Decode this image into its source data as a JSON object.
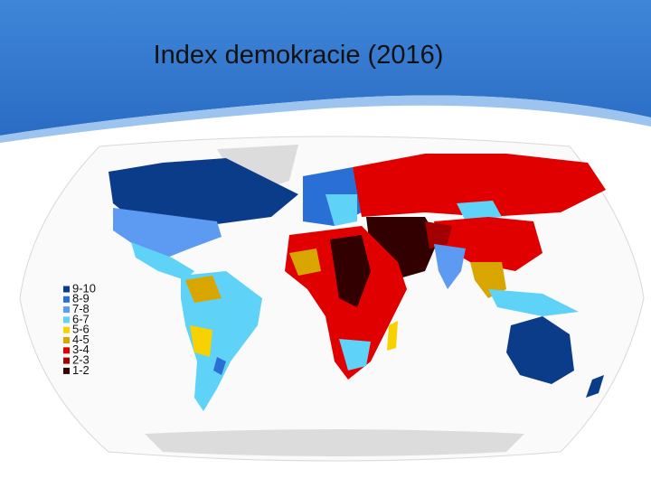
{
  "title": "Index demokracie (2016)",
  "legend": [
    {
      "label": "9-10",
      "color": "#0b3c8a"
    },
    {
      "label": "8-9",
      "color": "#2a6fd6"
    },
    {
      "label": "7-8",
      "color": "#5d9bf2"
    },
    {
      "label": "6-7",
      "color": "#5fd2f7"
    },
    {
      "label": "5-6",
      "color": "#f7d200"
    },
    {
      "label": "4-5",
      "color": "#d9a600"
    },
    {
      "label": "3-4",
      "color": "#e00000"
    },
    {
      "label": "2-3",
      "color": "#a30000"
    },
    {
      "label": "1-2",
      "color": "#320000"
    }
  ]
}
